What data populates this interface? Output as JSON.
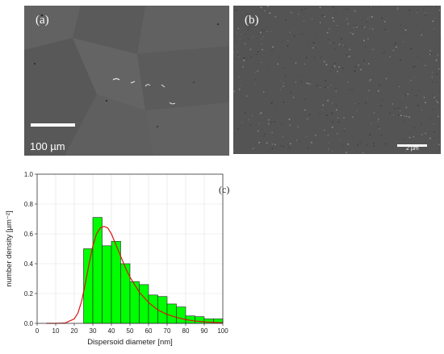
{
  "panels": {
    "a": {
      "label": "(a)",
      "scale_label": "100 µm"
    },
    "b": {
      "label": "(b)",
      "scale_label": "2 µm"
    }
  },
  "chart_data": {
    "type": "bar",
    "panel_label": "(c)",
    "xlabel": "Dispersoid diameter [nm]",
    "ylabel": "number density [µm⁻²]",
    "xlim": [
      0,
      100
    ],
    "ylim": [
      0,
      1.0
    ],
    "xticks": [
      0,
      10,
      20,
      30,
      40,
      50,
      60,
      70,
      80,
      90,
      100
    ],
    "yticks": [
      0.0,
      0.2,
      0.4,
      0.6,
      0.8,
      1.0
    ],
    "bin_width": 5,
    "bin_starts": [
      25,
      30,
      35,
      40,
      45,
      50,
      55,
      60,
      65,
      70,
      75,
      80,
      85,
      90,
      95
    ],
    "values": [
      0.5,
      0.71,
      0.52,
      0.55,
      0.4,
      0.28,
      0.26,
      0.19,
      0.18,
      0.13,
      0.11,
      0.05,
      0.045,
      0.03,
      0.03
    ],
    "bar_color": "#00ff00",
    "fit_curve": {
      "color": "#dd1111",
      "x": [
        5,
        10,
        15,
        20,
        22,
        24,
        26,
        28,
        30,
        32,
        34,
        36,
        38,
        40,
        42,
        44,
        46,
        48,
        50,
        55,
        60,
        65,
        70,
        75,
        80,
        85,
        90,
        95,
        100
      ],
      "y": [
        0.0,
        0.0,
        0.002,
        0.03,
        0.07,
        0.15,
        0.27,
        0.4,
        0.52,
        0.6,
        0.64,
        0.65,
        0.64,
        0.6,
        0.54,
        0.48,
        0.42,
        0.36,
        0.31,
        0.21,
        0.14,
        0.09,
        0.06,
        0.04,
        0.025,
        0.016,
        0.01,
        0.007,
        0.004
      ]
    },
    "grid": true,
    "legend": "none"
  }
}
